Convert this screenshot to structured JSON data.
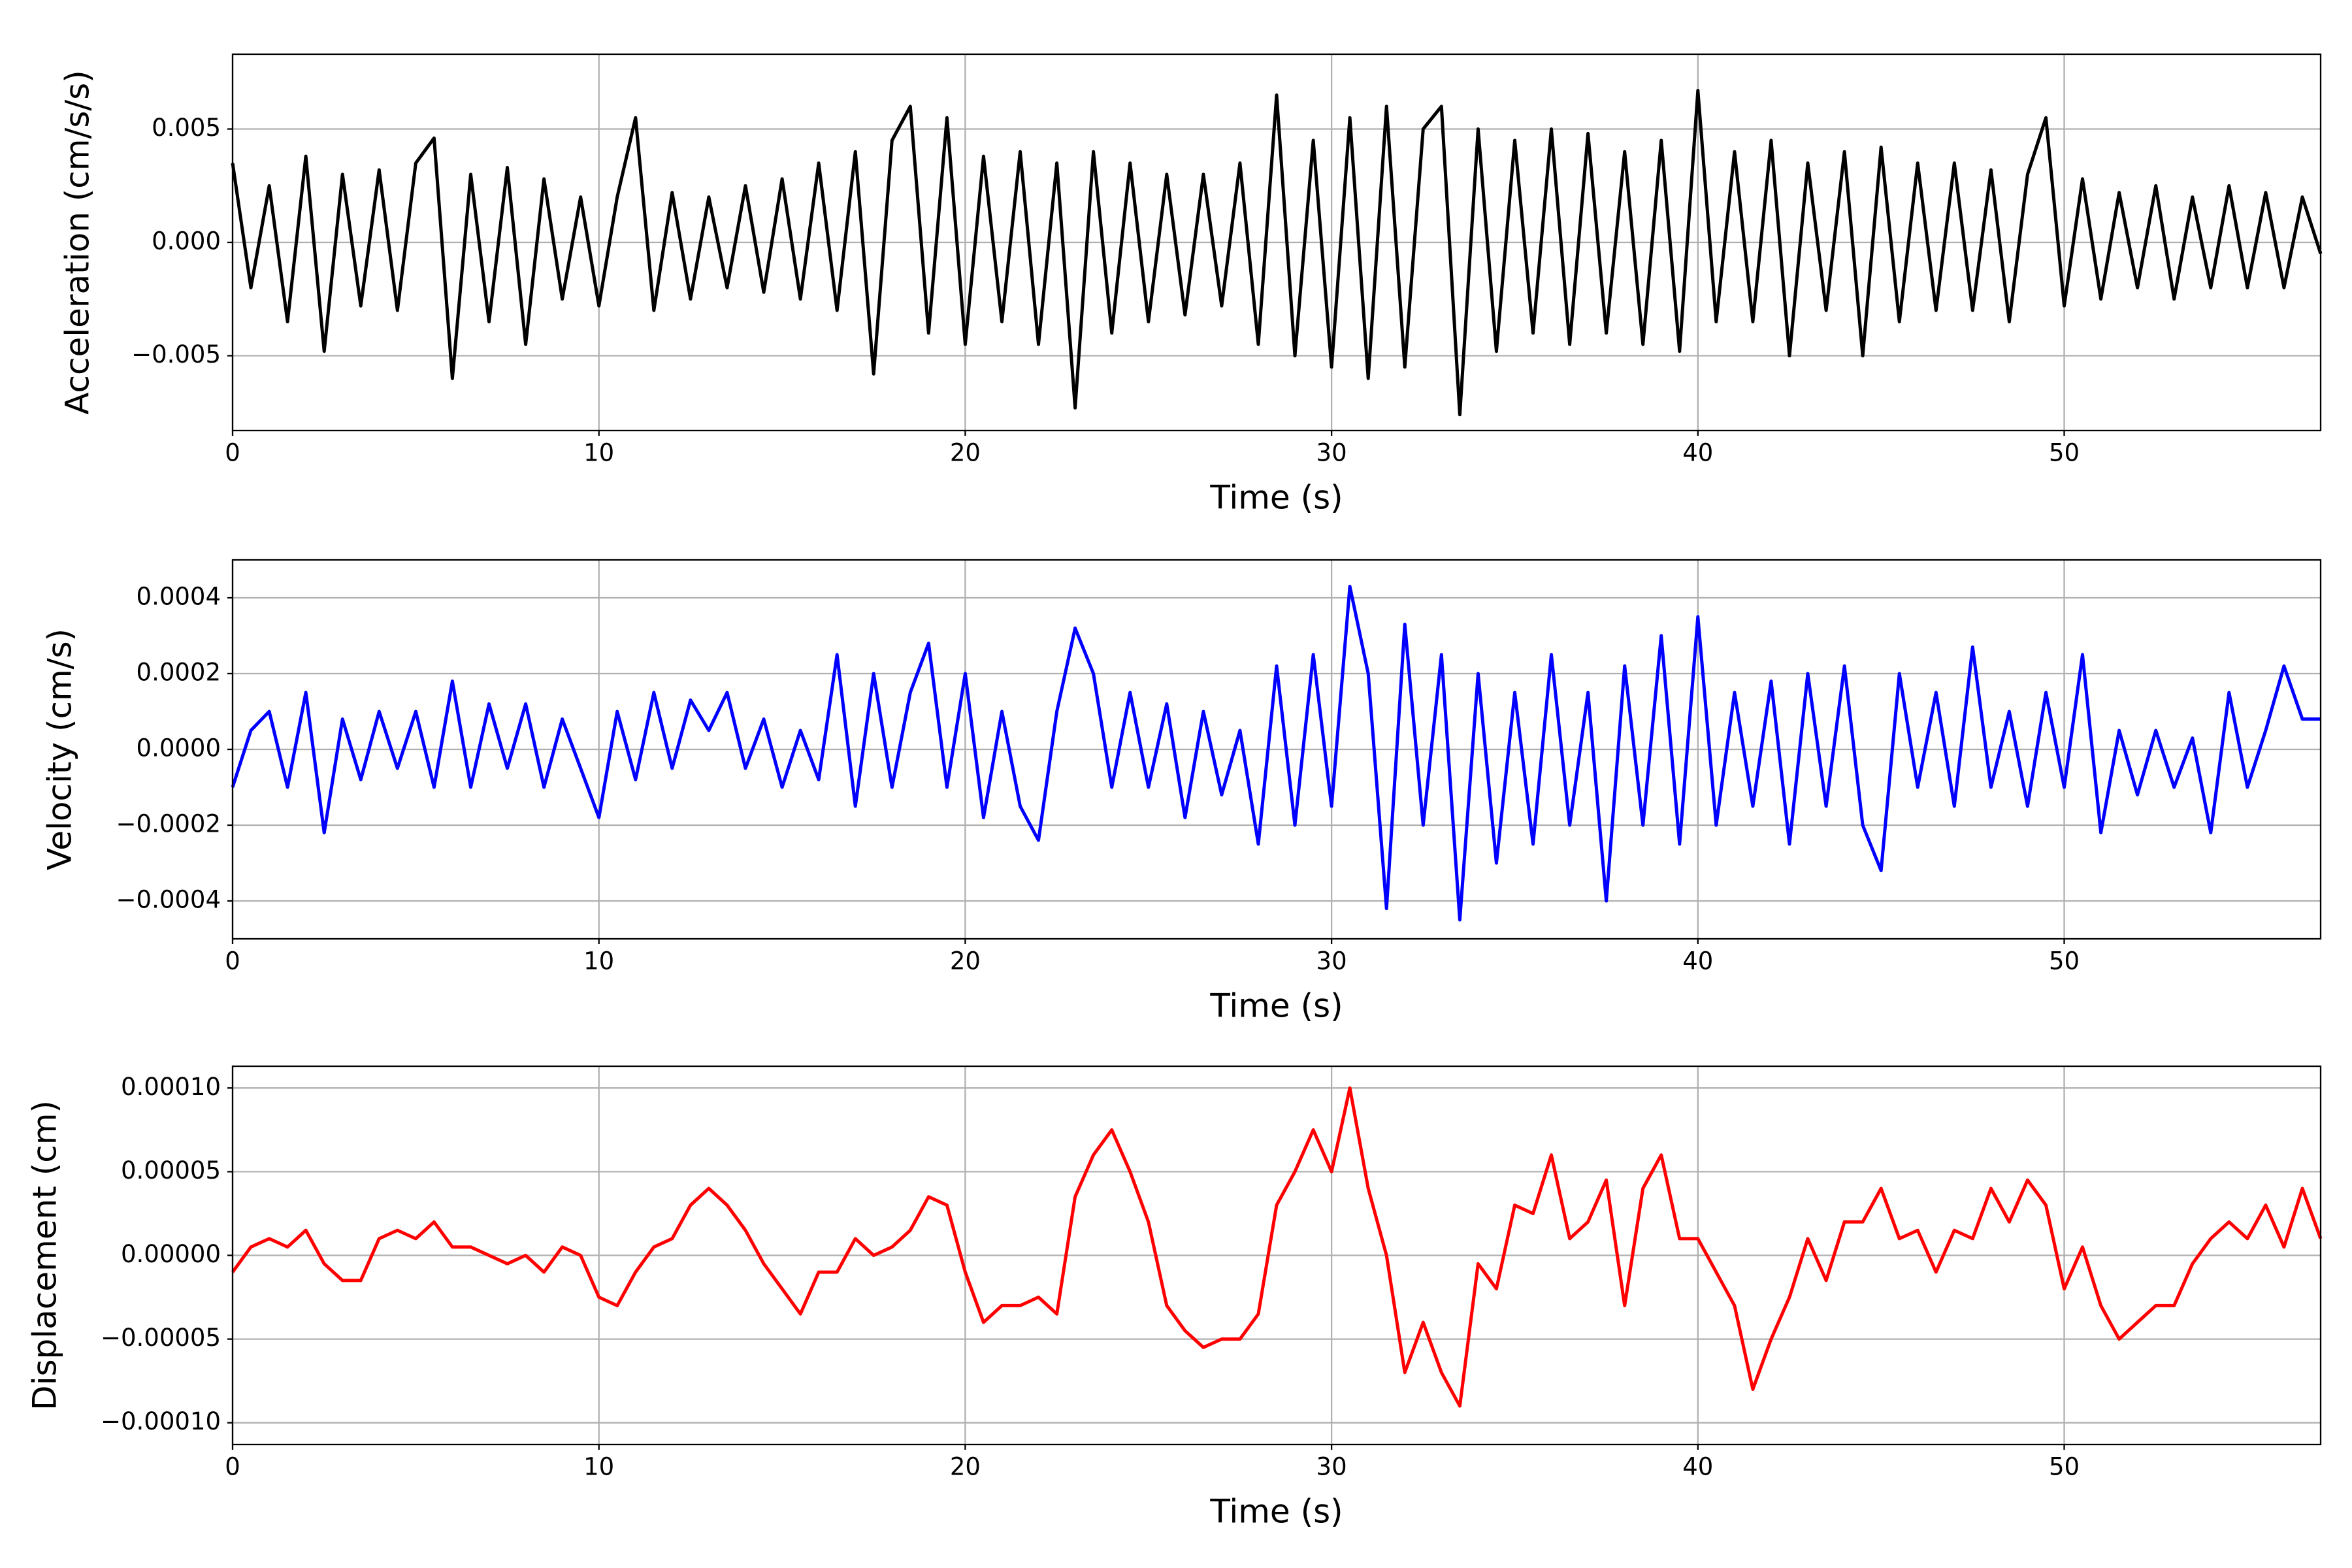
{
  "chart_data": [
    {
      "type": "line",
      "ylabel": "Acceleration (cm/s/s)",
      "xlabel": "Time (s)",
      "grid": true,
      "xlim": [
        0,
        57
      ],
      "xticks": [
        0,
        10,
        20,
        30,
        40,
        50
      ],
      "ylim": [
        -0.0083,
        0.0083
      ],
      "yticks": [
        {
          "value": -0.005,
          "label": "−0.005"
        },
        {
          "value": 0,
          "label": "0.000"
        },
        0.005
      ],
      "x": [
        0,
        0.5,
        1,
        1.5,
        2,
        2.5,
        3,
        3.5,
        4,
        4.5,
        5,
        5.5,
        6,
        6.5,
        7,
        7.5,
        8,
        8.5,
        9,
        9.5,
        10,
        10.5,
        11,
        11.5,
        12,
        12.5,
        13,
        13.5,
        14,
        14.5,
        15,
        15.5,
        16,
        16.5,
        17,
        17.5,
        18,
        18.5,
        19,
        19.5,
        20,
        20.5,
        21,
        21.5,
        22,
        22.5,
        23,
        23.5,
        24,
        24.5,
        25,
        25.5,
        26,
        26.5,
        27,
        27.5,
        28,
        28.5,
        29,
        29.5,
        30,
        30.5,
        31,
        31.5,
        32,
        32.5,
        33,
        33.5,
        34,
        34.5,
        35,
        35.5,
        36,
        36.5,
        37,
        37.5,
        38,
        38.5,
        39,
        39.5,
        40,
        40.5,
        41,
        41.5,
        42,
        42.5,
        43,
        43.5,
        44,
        44.5,
        45,
        45.5,
        46,
        46.5,
        47,
        47.5,
        48,
        48.5,
        49,
        49.5,
        50,
        50.5,
        51,
        51.5,
        52,
        52.5,
        53,
        53.5,
        54,
        54.5,
        55,
        55.5,
        56,
        56.5,
        57
      ],
      "series": [
        {
          "color": "#000000",
          "values": [
            0.0035,
            -0.002,
            0.0025,
            -0.0035,
            0.0038,
            -0.0048,
            0.003,
            -0.0028,
            0.0032,
            -0.003,
            0.0035,
            0.0046,
            -0.006,
            0.003,
            -0.0035,
            0.0033,
            -0.0045,
            0.0028,
            -0.0025,
            0.002,
            -0.0028,
            0.002,
            0.0055,
            -0.003,
            0.0022,
            -0.0025,
            0.002,
            -0.002,
            0.0025,
            -0.0022,
            0.0028,
            -0.0025,
            0.0035,
            -0.003,
            0.004,
            -0.0058,
            0.0045,
            0.006,
            -0.004,
            0.0055,
            -0.0045,
            0.0038,
            -0.0035,
            0.004,
            -0.0045,
            0.0035,
            -0.0073,
            0.004,
            -0.004,
            0.0035,
            -0.0035,
            0.003,
            -0.0032,
            0.003,
            -0.0028,
            0.0035,
            -0.0045,
            0.0065,
            -0.005,
            0.0045,
            -0.0055,
            0.0055,
            -0.006,
            0.006,
            -0.0055,
            0.005,
            0.006,
            -0.0076,
            0.005,
            -0.0048,
            0.0045,
            -0.004,
            0.005,
            -0.0045,
            0.0048,
            -0.004,
            0.004,
            -0.0045,
            0.0045,
            -0.0048,
            0.0067,
            -0.0035,
            0.004,
            -0.0035,
            0.0045,
            -0.005,
            0.0035,
            -0.003,
            0.004,
            -0.005,
            0.0042,
            -0.0035,
            0.0035,
            -0.003,
            0.0035,
            -0.003,
            0.0032,
            -0.0035,
            0.003,
            0.0055,
            -0.0028,
            0.0028,
            -0.0025,
            0.0022,
            -0.002,
            0.0025,
            -0.0025,
            0.002,
            -0.002,
            0.0025,
            -0.002,
            0.0022,
            -0.002,
            0.002,
            -0.0005
          ]
        }
      ]
    },
    {
      "type": "line",
      "ylabel": "Velocity (cm/s)",
      "xlabel": "Time (s)",
      "grid": true,
      "xlim": [
        0,
        57
      ],
      "xticks": [
        0,
        10,
        20,
        30,
        40,
        50
      ],
      "ylim": [
        -0.0005,
        0.0005
      ],
      "yticks": [
        {
          "value": -0.0004,
          "label": "−0.0004"
        },
        {
          "value": -0.0002,
          "label": "−0.0002"
        },
        {
          "value": 0,
          "label": "0.0000"
        },
        {
          "value": 0.0002,
          "label": "0.0002"
        },
        {
          "value": 0.0004,
          "label": "0.0004"
        }
      ],
      "x": [
        0,
        0.5,
        1,
        1.5,
        2,
        2.5,
        3,
        3.5,
        4,
        4.5,
        5,
        5.5,
        6,
        6.5,
        7,
        7.5,
        8,
        8.5,
        9,
        9.5,
        10,
        10.5,
        11,
        11.5,
        12,
        12.5,
        13,
        13.5,
        14,
        14.5,
        15,
        15.5,
        16,
        16.5,
        17,
        17.5,
        18,
        18.5,
        19,
        19.5,
        20,
        20.5,
        21,
        21.5,
        22,
        22.5,
        23,
        23.5,
        24,
        24.5,
        25,
        25.5,
        26,
        26.5,
        27,
        27.5,
        28,
        28.5,
        29,
        29.5,
        30,
        30.5,
        31,
        31.5,
        32,
        32.5,
        33,
        33.5,
        34,
        34.5,
        35,
        35.5,
        36,
        36.5,
        37,
        37.5,
        38,
        38.5,
        39,
        39.5,
        40,
        40.5,
        41,
        41.5,
        42,
        42.5,
        43,
        43.5,
        44,
        44.5,
        45,
        45.5,
        46,
        46.5,
        47,
        47.5,
        48,
        48.5,
        49,
        49.5,
        50,
        50.5,
        51,
        51.5,
        52,
        52.5,
        53,
        53.5,
        54,
        54.5,
        55,
        55.5,
        56,
        56.5,
        57
      ],
      "series": [
        {
          "color": "#0000ff",
          "values": [
            -0.0001,
            5e-05,
            0.0001,
            -0.0001,
            0.00015,
            -0.00022,
            8e-05,
            -8e-05,
            0.0001,
            -5e-05,
            0.0001,
            -0.0001,
            0.00018,
            -0.0001,
            0.00012,
            -5e-05,
            0.00012,
            -0.0001,
            8e-05,
            -5e-05,
            -0.00018,
            0.0001,
            -8e-05,
            0.00015,
            -5e-05,
            0.00013,
            5e-05,
            0.00015,
            -5e-05,
            8e-05,
            -0.0001,
            5e-05,
            -8e-05,
            0.00025,
            -0.00015,
            0.0002,
            -0.0001,
            0.00015,
            0.00028,
            -0.0001,
            0.0002,
            -0.00018,
            0.0001,
            -0.00015,
            -0.00024,
            0.0001,
            0.00032,
            0.0002,
            -0.0001,
            0.00015,
            -0.0001,
            0.00012,
            -0.00018,
            0.0001,
            -0.00012,
            5e-05,
            -0.00025,
            0.00022,
            -0.0002,
            0.00025,
            -0.00015,
            0.00043,
            0.0002,
            -0.00042,
            0.00033,
            -0.0002,
            0.00025,
            -0.00045,
            0.0002,
            -0.0003,
            0.00015,
            -0.00025,
            0.00025,
            -0.0002,
            0.00015,
            -0.0004,
            0.00022,
            -0.0002,
            0.0003,
            -0.00025,
            0.00035,
            -0.0002,
            0.00015,
            -0.00015,
            0.00018,
            -0.00025,
            0.0002,
            -0.00015,
            0.00022,
            -0.0002,
            -0.00032,
            0.0002,
            -0.0001,
            0.00015,
            -0.00015,
            0.00027,
            -0.0001,
            0.0001,
            -0.00015,
            0.00015,
            -0.0001,
            0.00025,
            -0.00022,
            5e-05,
            -0.00012,
            5e-05,
            -0.0001,
            3e-05,
            -0.00022,
            0.00015,
            -0.0001,
            5e-05,
            0.00022,
            8e-05,
            8e-05
          ]
        }
      ]
    },
    {
      "type": "line",
      "ylabel": "Displacement (cm)",
      "xlabel": "Time (s)",
      "grid": true,
      "xlim": [
        0,
        57
      ],
      "xticks": [
        0,
        10,
        20,
        30,
        40,
        50
      ],
      "ylim": [
        -0.000113,
        0.000113
      ],
      "yticks": [
        {
          "value": -0.0001,
          "label": "−0.00010"
        },
        {
          "value": -5e-05,
          "label": "−0.00005"
        },
        {
          "value": 0,
          "label": "0.00000"
        },
        {
          "value": 5e-05,
          "label": "0.00005"
        },
        {
          "value": 0.0001,
          "label": "0.00010"
        }
      ],
      "x": [
        0,
        0.5,
        1,
        1.5,
        2,
        2.5,
        3,
        3.5,
        4,
        4.5,
        5,
        5.5,
        6,
        6.5,
        7,
        7.5,
        8,
        8.5,
        9,
        9.5,
        10,
        10.5,
        11,
        11.5,
        12,
        12.5,
        13,
        13.5,
        14,
        14.5,
        15,
        15.5,
        16,
        16.5,
        17,
        17.5,
        18,
        18.5,
        19,
        19.5,
        20,
        20.5,
        21,
        21.5,
        22,
        22.5,
        23,
        23.5,
        24,
        24.5,
        25,
        25.5,
        26,
        26.5,
        27,
        27.5,
        28,
        28.5,
        29,
        29.5,
        30,
        30.5,
        31,
        31.5,
        32,
        32.5,
        33,
        33.5,
        34,
        34.5,
        35,
        35.5,
        36,
        36.5,
        37,
        37.5,
        38,
        38.5,
        39,
        39.5,
        40,
        40.5,
        41,
        41.5,
        42,
        42.5,
        43,
        43.5,
        44,
        44.5,
        45,
        45.5,
        46,
        46.5,
        47,
        47.5,
        48,
        48.5,
        49,
        49.5,
        50,
        50.5,
        51,
        51.5,
        52,
        52.5,
        53,
        53.5,
        54,
        54.5,
        55,
        55.5,
        56,
        56.5,
        57
      ],
      "series": [
        {
          "color": "#ff0000",
          "values": [
            -1e-05,
            5e-06,
            1e-05,
            5e-06,
            1.5e-05,
            -5e-06,
            -1.5e-05,
            -1.5e-05,
            1e-05,
            1.5e-05,
            1e-05,
            2e-05,
            5e-06,
            5e-06,
            0,
            -5e-06,
            0,
            -1e-05,
            5e-06,
            0,
            -2.5e-05,
            -3e-05,
            -1e-05,
            5e-06,
            1e-05,
            3e-05,
            4e-05,
            3e-05,
            1.5e-05,
            -5e-06,
            -2e-05,
            -3.5e-05,
            -1e-05,
            -1e-05,
            1e-05,
            0,
            5e-06,
            1.5e-05,
            3.5e-05,
            3e-05,
            -1e-05,
            -4e-05,
            -3e-05,
            -3e-05,
            -2.5e-05,
            -3.5e-05,
            3.5e-05,
            6e-05,
            7.5e-05,
            5e-05,
            2e-05,
            -3e-05,
            -4.5e-05,
            -5.5e-05,
            -5e-05,
            -5e-05,
            -3.5e-05,
            3e-05,
            5e-05,
            7.5e-05,
            5e-05,
            0.0001,
            4e-05,
            0,
            -7e-05,
            -4e-05,
            -7e-05,
            -9e-05,
            -5e-06,
            -2e-05,
            3e-05,
            2.5e-05,
            6e-05,
            1e-05,
            2e-05,
            4.5e-05,
            -3e-05,
            4e-05,
            6e-05,
            1e-05,
            1e-05,
            -1e-05,
            -3e-05,
            -8e-05,
            -5e-05,
            -2.5e-05,
            1e-05,
            -1.5e-05,
            2e-05,
            2e-05,
            4e-05,
            1e-05,
            1.5e-05,
            -1e-05,
            1.5e-05,
            1e-05,
            4e-05,
            2e-05,
            4.5e-05,
            3e-05,
            -2e-05,
            5e-06,
            -3e-05,
            -5e-05,
            -4e-05,
            -3e-05,
            -3e-05,
            -5e-06,
            1e-05,
            2e-05,
            1e-05,
            3e-05,
            5e-06,
            4e-05,
            1e-05
          ]
        }
      ]
    }
  ]
}
